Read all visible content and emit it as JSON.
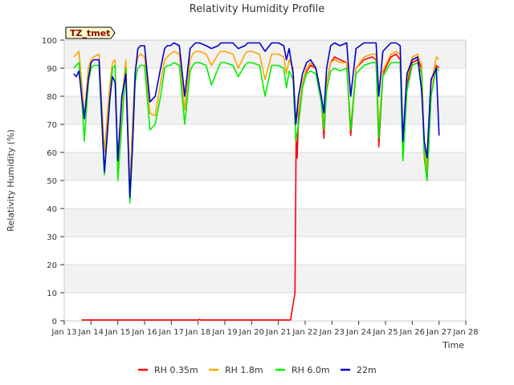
{
  "chart_data": {
    "type": "line",
    "title": "Relativity Humidity Profile",
    "xlabel": "Time",
    "ylabel": "Relativity Humidity (%)",
    "tag": "TZ_tmet",
    "xlim": [
      13,
      28
    ],
    "ylim": [
      0,
      100
    ],
    "xticks": [
      13,
      14,
      15,
      16,
      17,
      18,
      19,
      20,
      21,
      22,
      23,
      24,
      25,
      26,
      27,
      28
    ],
    "xtick_labels": [
      "Jan 13",
      "Jan 14",
      "Jan 15",
      "Jan 16",
      "Jan 17",
      "Jan 18",
      "Jan 19",
      "Jan 20",
      "Jan 21",
      "Jan 22",
      "Jan 23",
      "Jan 24",
      "Jan 25",
      "Jan 26",
      "Jan 27",
      "Jan 28"
    ],
    "yticks": [
      0,
      10,
      20,
      30,
      40,
      50,
      60,
      70,
      80,
      90,
      100
    ],
    "ytick_labels": [
      "0",
      "10",
      "20",
      "30",
      "40",
      "50",
      "60",
      "70",
      "80",
      "90",
      "100"
    ],
    "grid": true,
    "legend_position": "bottom",
    "series": [
      {
        "name": "RH 0.35m",
        "color": "#ff0000",
        "x": [
          13.65,
          14.5,
          15.5,
          16.5,
          17.5,
          18.0,
          18.02,
          18.06,
          18.1,
          19.0,
          20.0,
          21.0,
          21.45,
          21.62,
          21.66,
          21.7,
          21.74,
          21.8,
          21.9,
          22.0,
          22.2,
          22.4,
          22.6,
          22.7,
          22.8,
          22.95,
          23.1,
          23.3,
          23.55,
          23.7,
          23.9,
          24.2,
          24.5,
          24.65,
          24.75,
          24.9,
          25.2,
          25.4,
          25.55,
          25.65,
          25.8,
          26.0,
          26.2,
          26.35,
          26.45,
          26.55,
          26.7,
          26.9,
          27.0
        ],
        "y": [
          0.3,
          0.3,
          0.3,
          0.3,
          0.3,
          0.3,
          0.5,
          0.5,
          0.3,
          0.3,
          0.3,
          0.3,
          0.3,
          10,
          65,
          58,
          70,
          78,
          85,
          88,
          91,
          90,
          80,
          65,
          85,
          92,
          94,
          93,
          92,
          66,
          90,
          93,
          94,
          93,
          62,
          88,
          94,
          95,
          93,
          58,
          84,
          92,
          93,
          90,
          60,
          50,
          80,
          91,
          90
        ]
      },
      {
        "name": "RH 1.8m",
        "color": "#ffa500",
        "x": [
          13.35,
          13.45,
          13.55,
          13.65,
          13.75,
          13.9,
          14.0,
          14.1,
          14.3,
          14.5,
          14.7,
          14.8,
          14.9,
          15.0,
          15.15,
          15.3,
          15.45,
          15.55,
          15.65,
          15.75,
          15.85,
          16.0,
          16.2,
          16.4,
          16.6,
          16.75,
          16.85,
          16.95,
          17.1,
          17.3,
          17.5,
          17.7,
          17.8,
          17.9,
          18.05,
          18.3,
          18.5,
          18.75,
          18.85,
          19.0,
          19.3,
          19.5,
          19.75,
          19.85,
          20.0,
          20.3,
          20.5,
          20.75,
          20.85,
          21.0,
          21.2,
          21.3,
          21.4,
          21.55,
          21.65,
          21.75,
          21.9,
          22.05,
          22.2,
          22.4,
          22.6,
          22.7,
          22.8,
          22.95,
          23.1,
          23.3,
          23.55,
          23.7,
          23.9,
          24.2,
          24.5,
          24.65,
          24.75,
          24.9,
          25.2,
          25.4,
          25.55,
          25.65,
          25.8,
          26.0,
          26.2,
          26.35,
          26.45,
          26.55,
          26.7,
          26.9,
          27.0
        ],
        "y": [
          94,
          95,
          96,
          85,
          73,
          90,
          93,
          94,
          95,
          60,
          84,
          92,
          93,
          55,
          78,
          93,
          48,
          70,
          89,
          94,
          95,
          94,
          74,
          73,
          85,
          93,
          94,
          95,
          96,
          95,
          75,
          93,
          95,
          96,
          96,
          95,
          91,
          95,
          96,
          96,
          95,
          90,
          95,
          96,
          96,
          95,
          86,
          95,
          95,
          95,
          94,
          88,
          93,
          90,
          71,
          75,
          85,
          90,
          92,
          90,
          80,
          70,
          85,
          92,
          93,
          92,
          92,
          69,
          90,
          94,
          95,
          95,
          68,
          89,
          95,
          96,
          95,
          61,
          86,
          94,
          95,
          91,
          62,
          54,
          84,
          94,
          93
        ]
      },
      {
        "name": "RH 6.0m",
        "color": "#00ee00",
        "x": [
          13.35,
          13.45,
          13.55,
          13.65,
          13.75,
          13.9,
          14.0,
          14.1,
          14.3,
          14.5,
          14.7,
          14.8,
          14.9,
          15.0,
          15.15,
          15.3,
          15.45,
          15.55,
          15.65,
          15.75,
          15.85,
          16.0,
          16.2,
          16.4,
          16.6,
          16.75,
          16.85,
          16.95,
          17.1,
          17.3,
          17.5,
          17.7,
          17.8,
          17.9,
          18.05,
          18.3,
          18.5,
          18.75,
          18.85,
          19.0,
          19.3,
          19.5,
          19.75,
          19.85,
          20.0,
          20.3,
          20.5,
          20.75,
          20.85,
          21.0,
          21.2,
          21.3,
          21.4,
          21.55,
          21.65,
          21.75,
          21.9,
          22.05,
          22.2,
          22.4,
          22.6,
          22.7,
          22.8,
          22.95,
          23.1,
          23.3,
          23.55,
          23.7,
          23.9,
          24.2,
          24.5,
          24.65,
          24.75,
          24.9,
          25.2,
          25.4,
          25.55,
          25.65,
          25.8,
          26.0,
          26.2,
          26.35,
          26.45,
          26.55,
          26.7,
          26.9,
          27.0
        ],
        "y": [
          90,
          91,
          92,
          80,
          64,
          85,
          90,
          91,
          91,
          52,
          78,
          90,
          91,
          50,
          70,
          90,
          42,
          62,
          85,
          90,
          91,
          91,
          68,
          70,
          80,
          90,
          91,
          91,
          92,
          91,
          70,
          89,
          91,
          92,
          92,
          91,
          84,
          90,
          92,
          92,
          91,
          87,
          91,
          92,
          92,
          91,
          80,
          91,
          91,
          91,
          90,
          83,
          89,
          86,
          64,
          70,
          83,
          88,
          89,
          88,
          78,
          68,
          82,
          89,
          90,
          89,
          90,
          68,
          88,
          91,
          92,
          92,
          65,
          87,
          92,
          92,
          92,
          57,
          82,
          91,
          92,
          88,
          58,
          50,
          80,
          90,
          89
        ]
      },
      {
        "name": "22m",
        "color": "#0000cc",
        "x": [
          13.35,
          13.45,
          13.55,
          13.65,
          13.75,
          13.9,
          14.0,
          14.1,
          14.3,
          14.5,
          14.7,
          14.8,
          14.9,
          15.0,
          15.15,
          15.3,
          15.45,
          15.55,
          15.65,
          15.75,
          15.85,
          16.0,
          16.2,
          16.4,
          16.6,
          16.75,
          16.85,
          16.95,
          17.1,
          17.3,
          17.5,
          17.7,
          17.8,
          17.9,
          18.05,
          18.3,
          18.5,
          18.75,
          18.85,
          19.0,
          19.3,
          19.5,
          19.75,
          19.85,
          20.0,
          20.3,
          20.5,
          20.75,
          20.85,
          21.0,
          21.2,
          21.3,
          21.4,
          21.55,
          21.65,
          21.75,
          21.9,
          22.05,
          22.2,
          22.4,
          22.6,
          22.7,
          22.8,
          22.95,
          23.1,
          23.3,
          23.55,
          23.7,
          23.9,
          24.2,
          24.5,
          24.65,
          24.75,
          24.9,
          25.2,
          25.4,
          25.55,
          25.65,
          25.8,
          26.0,
          26.2,
          26.35,
          26.45,
          26.55,
          26.7,
          26.9,
          27.0
        ],
        "y": [
          88,
          87,
          89,
          80,
          72,
          86,
          92,
          93,
          93,
          53,
          79,
          87,
          85,
          57,
          80,
          88,
          44,
          62,
          88,
          97,
          98,
          98,
          78,
          80,
          90,
          97,
          98,
          98,
          99,
          98,
          80,
          97,
          98,
          99,
          99,
          98,
          97,
          98,
          99,
          99,
          99,
          97,
          98,
          99,
          99,
          99,
          96,
          99,
          99,
          99,
          98,
          93,
          97,
          88,
          70,
          80,
          88,
          92,
          93,
          90,
          80,
          74,
          90,
          98,
          99,
          98,
          99,
          80,
          97,
          99,
          99,
          99,
          80,
          96,
          99,
          99,
          98,
          64,
          88,
          93,
          94,
          82,
          64,
          58,
          86,
          90,
          66
        ]
      }
    ]
  }
}
